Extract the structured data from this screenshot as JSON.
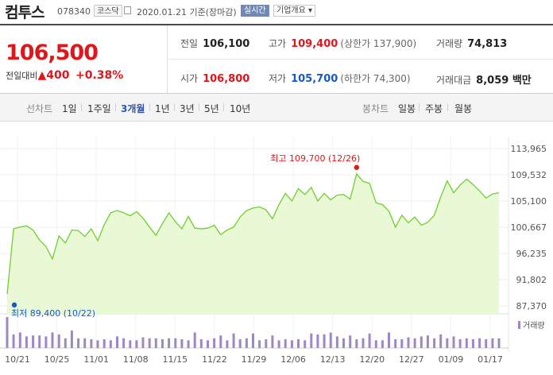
{
  "header": {
    "stock_name": "컴투스",
    "stock_code": "078340",
    "market_badge": "코스닥",
    "date_text": "2020.01.21 기준(장마감)",
    "live_label": "실시간",
    "company_menu": "기업개요",
    "company_menu_caret": "▾"
  },
  "summary": {
    "price": "106,500",
    "change_label": "전일대비",
    "change_arrow": "▲",
    "change_amount": "400",
    "change_pct": "+0.38%",
    "prev_close_label": "전일",
    "prev_close": "106,100",
    "high_label": "고가",
    "high": "109,400",
    "upper_limit": "(상한가 137,900)",
    "volume_label": "거래량",
    "volume": "74,813",
    "open_label": "시가",
    "open": "106,800",
    "low_label": "저가",
    "low": "105,700",
    "lower_limit": "(하한가 74,300)",
    "amount_label": "거래대금",
    "amount": "8,059 백만"
  },
  "tabs": {
    "line_title": "선차트",
    "line_items": [
      "1일",
      "1주일",
      "3개월",
      "1년",
      "3년",
      "5년",
      "10년"
    ],
    "line_active": "3개월",
    "candle_title": "봉차트",
    "candle_items": [
      "일봉",
      "주봉",
      "월봉"
    ]
  },
  "colors": {
    "up": "#e2151b",
    "down": "#1759c6",
    "line": "#6fcf2f",
    "volume": "#9d88c4"
  },
  "chart_data": {
    "type": "area",
    "y_ticks": [
      "113,965",
      "109,532",
      "105,100",
      "100,667",
      "96,235",
      "91,802",
      "87,370"
    ],
    "ylim": [
      87370,
      113965
    ],
    "x_ticks": [
      "10/21",
      "10/25",
      "11/01",
      "11/08",
      "11/15",
      "11/22",
      "11/29",
      "12/06",
      "12/13",
      "12/20",
      "12/27",
      "01/09",
      "01/17"
    ],
    "high_annotation": "최고 109,700 (12/26)",
    "low_annotation": "최저 89,400 (10/22)",
    "high_value": 109700,
    "low_value": 89400,
    "price_series": [
      89400,
      100400,
      100700,
      100900,
      100200,
      98500,
      97400,
      95300,
      99200,
      98000,
      100200,
      100100,
      99100,
      100400,
      98400,
      101100,
      103100,
      103500,
      103100,
      102600,
      103300,
      102200,
      100700,
      99300,
      101300,
      103100,
      101600,
      100400,
      102500,
      100500,
      100400,
      100500,
      101000,
      99400,
      100200,
      100700,
      102400,
      103500,
      103900,
      104100,
      103600,
      102100,
      104500,
      106400,
      105100,
      107200,
      106200,
      107400,
      105100,
      106400,
      105300,
      106100,
      106200,
      105400,
      109700,
      108400,
      108100,
      104800,
      104500,
      103400,
      100700,
      102700,
      101400,
      102400,
      101000,
      101500,
      102700,
      105800,
      108500,
      106500,
      107800,
      108800,
      107900,
      106800,
      105600,
      106300,
      106500
    ],
    "volume_series": [
      3.2,
      1.4,
      1.6,
      1.2,
      1.3,
      1.3,
      1.2,
      1.6,
      1.4,
      1.0,
      1.8,
      1.0,
      1.0,
      0.9,
      0.8,
      0.9,
      0.8,
      1.2,
      1.0,
      0.8,
      0.8,
      1.1,
      1.0,
      1.0,
      0.9,
      1.0,
      1.0,
      0.9,
      0.8,
      1.6,
      0.9,
      0.8,
      1.0,
      1.3,
      0.8,
      1.5,
      0.9,
      1.0,
      1.5,
      0.8,
      0.9,
      1.3,
      0.8,
      0.9,
      0.8,
      0.9,
      0.8,
      1.5,
      1.4,
      1.4,
      1.6,
      1.2,
      1.0,
      1.3,
      0.9,
      1.0,
      1.5,
      0.8,
      0.8,
      1.6,
      0.9,
      0.9,
      1.1,
      1.0,
      1.2,
      1.3,
      1.0,
      1.4,
      1.0,
      1.2,
      0.9,
      1.0,
      0.9,
      1.0,
      0.9,
      1.0,
      1.0
    ],
    "volume_legend": "거래량",
    "grid": true
  }
}
